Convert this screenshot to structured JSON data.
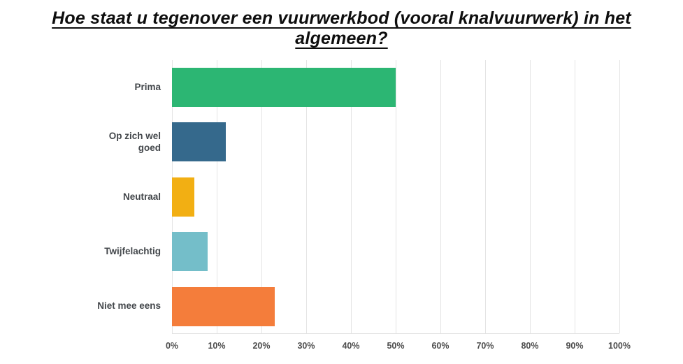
{
  "page": {
    "background": "#ffffff"
  },
  "chart_data": {
    "type": "bar",
    "orientation": "horizontal",
    "title": "Hoe staat u tegenover een vuurwerkbod (vooral knalvuurwerk) in het algemeen?",
    "categories": [
      "Prima",
      "Op zich wel goed",
      "Neutraal",
      "Twijfelachtig",
      "Niet mee eens"
    ],
    "values": [
      50,
      12,
      5,
      8,
      23
    ],
    "bar_colors": [
      "#2cb673",
      "#35698c",
      "#f2af13",
      "#74bec9",
      "#f47d3b"
    ],
    "xlabel": "",
    "ylabel": "",
    "xlim": [
      0,
      100
    ],
    "x_ticks": [
      0,
      10,
      20,
      30,
      40,
      50,
      60,
      70,
      80,
      90,
      100
    ],
    "x_tick_labels": [
      "0%",
      "10%",
      "20%",
      "30%",
      "40%",
      "50%",
      "60%",
      "70%",
      "80%",
      "90%",
      "100%"
    ],
    "grid": true,
    "gridline_color": "#e4e4e4",
    "legend": "none"
  }
}
